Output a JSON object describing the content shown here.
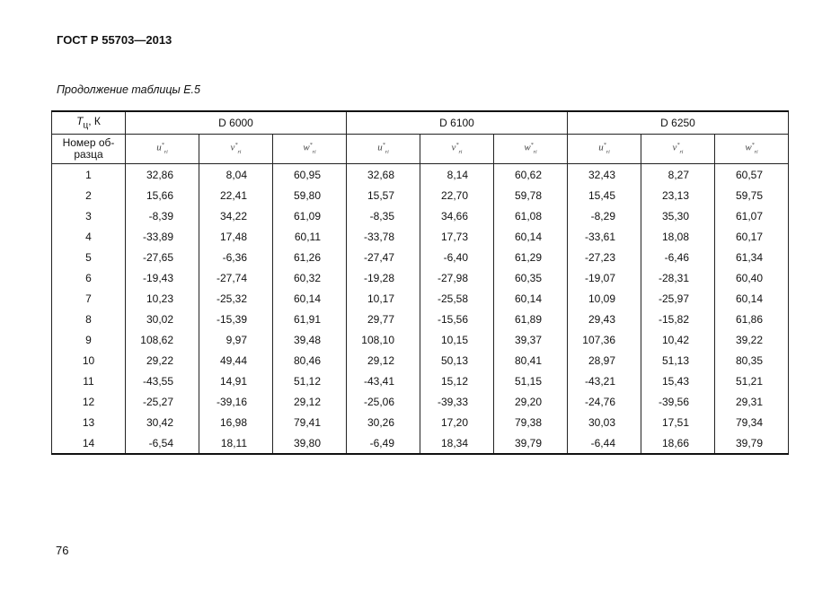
{
  "header": {
    "title": "ГОСТ Р 55703—2013"
  },
  "caption": "Продолжение таблицы Е.5",
  "table": {
    "corner": {
      "symbol": "T",
      "subscript": "ц",
      "unit": ", К"
    },
    "groups": [
      "D 6000",
      "D 6100",
      "D 6250"
    ],
    "sample_header": "Номер об-разца",
    "components": [
      {
        "symbol": "u",
        "sup": "*",
        "sub": "ri"
      },
      {
        "symbol": "v",
        "sup": "*",
        "sub": "ri"
      },
      {
        "symbol": "w",
        "sup": "*",
        "sub": "ri"
      }
    ],
    "rows": [
      [
        "1",
        "32,86",
        "8,04",
        "60,95",
        "32,68",
        "8,14",
        "60,62",
        "32,43",
        "8,27",
        "60,57"
      ],
      [
        "2",
        "15,66",
        "22,41",
        "59,80",
        "15,57",
        "22,70",
        "59,78",
        "15,45",
        "23,13",
        "59,75"
      ],
      [
        "3",
        "-8,39",
        "34,22",
        "61,09",
        "-8,35",
        "34,66",
        "61,08",
        "-8,29",
        "35,30",
        "61,07"
      ],
      [
        "4",
        "-33,89",
        "17,48",
        "60,11",
        "-33,78",
        "17,73",
        "60,14",
        "-33,61",
        "18,08",
        "60,17"
      ],
      [
        "5",
        "-27,65",
        "-6,36",
        "61,26",
        "-27,47",
        "-6,40",
        "61,29",
        "-27,23",
        "-6,46",
        "61,34"
      ],
      [
        "6",
        "-19,43",
        "-27,74",
        "60,32",
        "-19,28",
        "-27,98",
        "60,35",
        "-19,07",
        "-28,31",
        "60,40"
      ],
      [
        "7",
        "10,23",
        "-25,32",
        "60,14",
        "10,17",
        "-25,58",
        "60,14",
        "10,09",
        "-25,97",
        "60,14"
      ],
      [
        "8",
        "30,02",
        "-15,39",
        "61,91",
        "29,77",
        "-15,56",
        "61,89",
        "29,43",
        "-15,82",
        "61,86"
      ],
      [
        "9",
        "108,62",
        "9,97",
        "39,48",
        "108,10",
        "10,15",
        "39,37",
        "107,36",
        "10,42",
        "39,22"
      ],
      [
        "10",
        "29,22",
        "49,44",
        "80,46",
        "29,12",
        "50,13",
        "80,41",
        "28,97",
        "51,13",
        "80,35"
      ],
      [
        "11",
        "-43,55",
        "14,91",
        "51,12",
        "-43,41",
        "15,12",
        "51,15",
        "-43,21",
        "15,43",
        "51,21"
      ],
      [
        "12",
        "-25,27",
        "-39,16",
        "29,12",
        "-25,06",
        "-39,33",
        "29,20",
        "-24,76",
        "-39,56",
        "29,31"
      ],
      [
        "13",
        "30,42",
        "16,98",
        "79,41",
        "30,26",
        "17,20",
        "79,38",
        "30,03",
        "17,51",
        "79,34"
      ],
      [
        "14",
        "-6,54",
        "18,11",
        "39,80",
        "-6,49",
        "18,34",
        "39,79",
        "-6,44",
        "18,66",
        "39,79"
      ]
    ]
  },
  "footer": {
    "page_number": "76"
  }
}
